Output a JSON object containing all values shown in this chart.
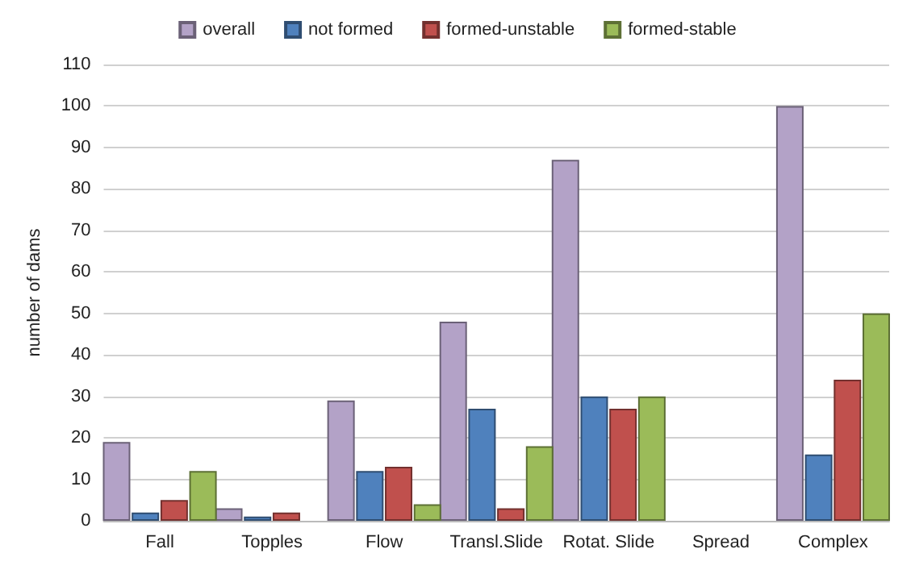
{
  "chart_data": {
    "type": "bar",
    "ylabel": "number of dams",
    "categories": [
      "Fall",
      "Topples",
      "Flow",
      "Transl.Slide",
      "Rotat. Slide",
      "Spread",
      "Complex"
    ],
    "series": [
      {
        "name": "overall",
        "color": "#b3a2c7",
        "values": [
          19,
          3,
          29,
          48,
          87,
          0,
          100
        ]
      },
      {
        "name": "not formed",
        "color": "#4f81bd",
        "values": [
          2,
          1,
          12,
          27,
          30,
          0,
          16
        ]
      },
      {
        "name": "formed-unstable",
        "color": "#c0504d",
        "values": [
          5,
          2,
          13,
          3,
          27,
          0,
          34
        ]
      },
      {
        "name": "formed-stable",
        "color": "#9bbb59",
        "values": [
          12,
          0,
          4,
          18,
          30,
          0,
          50
        ]
      }
    ],
    "ylim": [
      0,
      110
    ],
    "yticks": [
      0,
      10,
      20,
      30,
      40,
      50,
      60,
      70,
      80,
      90,
      100,
      110
    ],
    "grid": "y",
    "legend": "top"
  }
}
